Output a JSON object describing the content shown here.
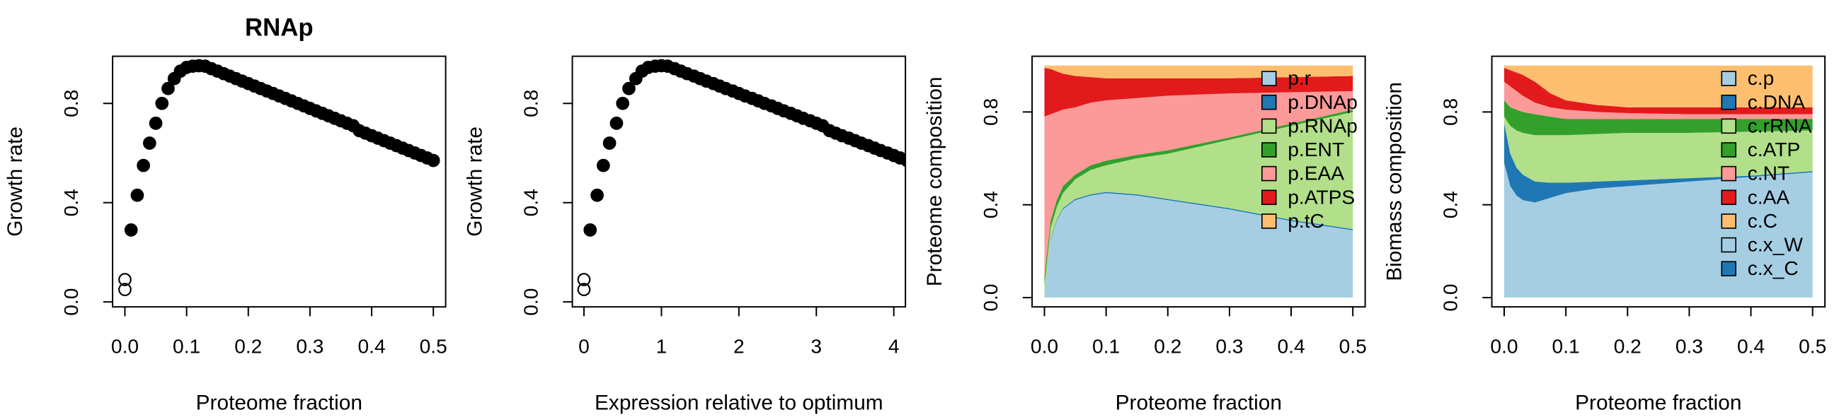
{
  "chart_data": [
    {
      "type": "scatter",
      "title": "RNAp",
      "xlabel": "Proteome fraction",
      "ylabel": "Growth rate",
      "xlim": [
        -0.02,
        0.52
      ],
      "ylim": [
        -0.02,
        0.99
      ],
      "xticks": [
        {
          "value": 0,
          "label": "0.0"
        },
        0.1,
        0.2,
        0.3,
        0.4,
        0.5
      ],
      "yticks": [
        {
          "value": 0,
          "label": "0.0"
        },
        0.4,
        0.8
      ],
      "series": [
        {
          "color": "#000000",
          "filled": true,
          "x": [
            0.01,
            0.02,
            0.03,
            0.04,
            0.05,
            0.06,
            0.07,
            0.08,
            0.09,
            0.1,
            0.11,
            0.12,
            0.13,
            0.14,
            0.15,
            0.16,
            0.17,
            0.18,
            0.19,
            0.2,
            0.21,
            0.22,
            0.23,
            0.24,
            0.25,
            0.26,
            0.27,
            0.28,
            0.29,
            0.3,
            0.31,
            0.32,
            0.33,
            0.34,
            0.35,
            0.36,
            0.37,
            0.38,
            0.39,
            0.4,
            0.41,
            0.42,
            0.43,
            0.44,
            0.45,
            0.46,
            0.47,
            0.48,
            0.49,
            0.5
          ],
          "values": [
            0.29,
            0.43,
            0.55,
            0.64,
            0.72,
            0.8,
            0.86,
            0.9,
            0.93,
            0.945,
            0.95,
            0.952,
            0.95,
            0.94,
            0.93,
            0.92,
            0.91,
            0.9,
            0.89,
            0.88,
            0.87,
            0.86,
            0.85,
            0.84,
            0.83,
            0.82,
            0.81,
            0.8,
            0.79,
            0.78,
            0.77,
            0.76,
            0.75,
            0.74,
            0.73,
            0.72,
            0.71,
            0.69,
            0.68,
            0.67,
            0.66,
            0.65,
            0.64,
            0.63,
            0.62,
            0.61,
            0.6,
            0.59,
            0.58,
            0.57
          ]
        },
        {
          "color": "#000000",
          "filled": false,
          "x": [
            0,
            0
          ],
          "values": [
            0.05,
            0.09
          ]
        }
      ]
    },
    {
      "type": "scatter",
      "xlabel": "Expression relative to optimum",
      "ylabel": "Growth rate",
      "xlim": [
        -0.15,
        4.15
      ],
      "ylim": [
        -0.02,
        0.99
      ],
      "xticks": [
        0,
        1,
        2,
        3,
        4
      ],
      "yticks": [
        {
          "value": 0,
          "label": "0.0"
        },
        0.4,
        0.8
      ],
      "series": [
        {
          "color": "#000000",
          "filled": true,
          "x": [
            0.08,
            0.17,
            0.25,
            0.33,
            0.42,
            0.5,
            0.58,
            0.67,
            0.75,
            0.83,
            0.92,
            1,
            1.08,
            1.17,
            1.25,
            1.33,
            1.42,
            1.5,
            1.58,
            1.67,
            1.75,
            1.83,
            1.92,
            2,
            2.08,
            2.17,
            2.25,
            2.33,
            2.42,
            2.5,
            2.58,
            2.67,
            2.75,
            2.83,
            2.92,
            3,
            3.08,
            3.17,
            3.25,
            3.33,
            3.42,
            3.5,
            3.58,
            3.67,
            3.75,
            3.83,
            3.92,
            4,
            4.08,
            4.17
          ],
          "values": [
            0.29,
            0.43,
            0.55,
            0.64,
            0.72,
            0.8,
            0.86,
            0.9,
            0.93,
            0.945,
            0.95,
            0.952,
            0.95,
            0.94,
            0.93,
            0.92,
            0.91,
            0.9,
            0.89,
            0.88,
            0.87,
            0.86,
            0.85,
            0.84,
            0.83,
            0.82,
            0.81,
            0.8,
            0.79,
            0.78,
            0.77,
            0.76,
            0.75,
            0.74,
            0.73,
            0.72,
            0.71,
            0.69,
            0.68,
            0.67,
            0.66,
            0.65,
            0.64,
            0.63,
            0.62,
            0.61,
            0.6,
            0.59,
            0.58,
            0.57
          ]
        },
        {
          "color": "#000000",
          "filled": false,
          "x": [
            0,
            0
          ],
          "values": [
            0.05,
            0.09
          ]
        }
      ]
    },
    {
      "type": "area",
      "stacked": true,
      "xlabel": "Proteome fraction",
      "ylabel": "Proteome composition",
      "xlim": [
        -0.02,
        0.52
      ],
      "ylim": [
        -0.04,
        1.04
      ],
      "legend": "topright",
      "xticks": [
        {
          "value": 0,
          "label": "0.0"
        },
        0.1,
        0.2,
        0.3,
        0.4,
        0.5
      ],
      "yticks": [
        {
          "value": 0,
          "label": "0.0"
        },
        0.4,
        0.8
      ],
      "x": [
        0,
        0.01,
        0.02,
        0.03,
        0.05,
        0.075,
        0.1,
        0.15,
        0.2,
        0.3,
        0.4,
        0.5
      ],
      "series": [
        {
          "name": "p.r",
          "color": "#a6cee3",
          "values": [
            0,
            0.25,
            0.33,
            0.38,
            0.42,
            0.44,
            0.45,
            0.44,
            0.42,
            0.38,
            0.33,
            0.29
          ]
        },
        {
          "name": "p.DNAp",
          "color": "#1f78b4",
          "values": [
            0.005,
            0.005,
            0.005,
            0.005,
            0.005,
            0.005,
            0.005,
            0.005,
            0.005,
            0.005,
            0.005,
            0.005
          ]
        },
        {
          "name": "p.RNAp",
          "color": "#b2df8a",
          "values": [
            0.045,
            0.045,
            0.055,
            0.065,
            0.085,
            0.105,
            0.115,
            0.155,
            0.195,
            0.295,
            0.405,
            0.505
          ]
        },
        {
          "name": "p.ENT",
          "color": "#33a02c",
          "values": [
            0.04,
            0.03,
            0.03,
            0.03,
            0.02,
            0.02,
            0.02,
            0.015,
            0.015,
            0.01,
            0.01,
            0.01
          ]
        },
        {
          "name": "p.EAA",
          "color": "#fb9a99",
          "values": [
            0.69,
            0.46,
            0.38,
            0.33,
            0.29,
            0.27,
            0.26,
            0.245,
            0.235,
            0.19,
            0.135,
            0.08
          ]
        },
        {
          "name": "p.ATPS",
          "color": "#e31a1c",
          "values": [
            0.21,
            0.195,
            0.175,
            0.155,
            0.135,
            0.11,
            0.095,
            0.085,
            0.075,
            0.065,
            0.065,
            0.065
          ]
        },
        {
          "name": "p.tC",
          "color": "#fdbf6f",
          "values": [
            0.01,
            0.015,
            0.025,
            0.035,
            0.045,
            0.05,
            0.055,
            0.055,
            0.055,
            0.055,
            0.05,
            0.045
          ]
        }
      ]
    },
    {
      "type": "area",
      "stacked": true,
      "xlabel": "Proteome fraction",
      "ylabel": "Biomass composition",
      "xlim": [
        -0.02,
        0.52
      ],
      "ylim": [
        -0.04,
        1.04
      ],
      "legend": "topright",
      "xticks": [
        {
          "value": 0,
          "label": "0.0"
        },
        0.1,
        0.2,
        0.3,
        0.4,
        0.5
      ],
      "yticks": [
        {
          "value": 0,
          "label": "0.0"
        },
        0.4,
        0.8
      ],
      "x": [
        0,
        0.01,
        0.02,
        0.03,
        0.05,
        0.075,
        0.1,
        0.15,
        0.2,
        0.3,
        0.4,
        0.5
      ],
      "series": [
        {
          "name": "c.p",
          "color": "#a6cee3",
          "values": [
            0.58,
            0.48,
            0.44,
            0.42,
            0.41,
            0.43,
            0.45,
            0.47,
            0.48,
            0.5,
            0.52,
            0.54
          ]
        },
        {
          "name": "c.DNA",
          "color": "#1f78b4",
          "values": [
            0.17,
            0.14,
            0.12,
            0.11,
            0.09,
            0.065,
            0.045,
            0.03,
            0.025,
            0.015,
            0.005,
            0.005
          ]
        },
        {
          "name": "c.rRNA",
          "color": "#b2df8a",
          "values": [
            0.03,
            0.12,
            0.16,
            0.18,
            0.2,
            0.205,
            0.205,
            0.205,
            0.205,
            0.195,
            0.19,
            0.175
          ]
        },
        {
          "name": "c.ATP",
          "color": "#33a02c",
          "values": [
            0.07,
            0.08,
            0.09,
            0.09,
            0.09,
            0.08,
            0.07,
            0.065,
            0.06,
            0.06,
            0.055,
            0.05
          ]
        },
        {
          "name": "c.NT",
          "color": "#fb9a99",
          "values": [
            0.08,
            0.09,
            0.08,
            0.07,
            0.05,
            0.04,
            0.04,
            0.03,
            0.025,
            0.02,
            0.02,
            0.02
          ]
        },
        {
          "name": "c.AA",
          "color": "#e31a1c",
          "values": [
            0.06,
            0.07,
            0.08,
            0.09,
            0.09,
            0.06,
            0.04,
            0.03,
            0.025,
            0.03,
            0.03,
            0.03
          ]
        },
        {
          "name": "c.C",
          "color": "#fdbf6f",
          "values": [
            0.01,
            0.02,
            0.03,
            0.04,
            0.07,
            0.12,
            0.15,
            0.17,
            0.18,
            0.18,
            0.18,
            0.18
          ]
        },
        {
          "name": "c.x_W",
          "color": "#a6cee3",
          "values": [
            0,
            0,
            0,
            0,
            0,
            0,
            0,
            0,
            0,
            0,
            0,
            0
          ]
        },
        {
          "name": "c.x_C",
          "color": "#1f78b4",
          "values": [
            0,
            0,
            0,
            0,
            0,
            0,
            0,
            0,
            0,
            0,
            0,
            0
          ]
        }
      ]
    }
  ]
}
